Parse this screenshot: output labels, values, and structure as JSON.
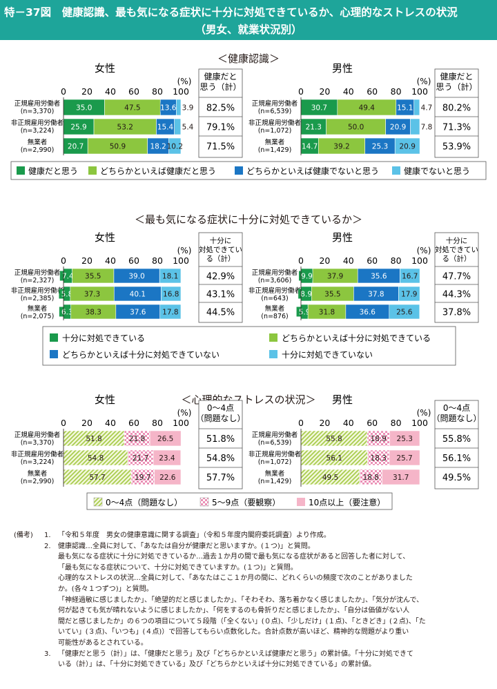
{
  "header": {
    "title": "特－37図　健康認識、最も気になる症状に十分に対処できているか、心理的なストレスの状況",
    "subtitle": "（男女、就業状況別）"
  },
  "percent_unit": "(%)",
  "chart_data": [
    {
      "type": "bar",
      "title": "＜健康認識＞",
      "orientation": "horizontal-stacked",
      "xlim": [
        0,
        100
      ],
      "xticks": [
        "0",
        "20",
        "40",
        "60",
        "80",
        "100"
      ],
      "summary_header": [
        "健康だと",
        "思う（計）"
      ],
      "legend_style": "row",
      "series": [
        {
          "name": "健康だと思う",
          "color": "#1a9a4c",
          "pattern": "solid"
        },
        {
          "name": "どちらかといえば健康だと思う",
          "color": "#8cc63f",
          "pattern": "solid"
        },
        {
          "name": "どちらかといえば健康でないと思う",
          "color": "#1b76c4",
          "pattern": "solid"
        },
        {
          "name": "健康でないと思う",
          "color": "#5bc2e7",
          "pattern": "solid"
        }
      ],
      "panels": [
        {
          "gender": "女性",
          "rows": [
            {
              "label": [
                "正規雇用労働者",
                "(n=3,370)"
              ],
              "values": [
                35.0,
                47.5,
                13.6,
                3.9
              ],
              "labels": [
                "35.0",
                "47.5",
                "13.6",
                "3.9"
              ],
              "total": "82.5%"
            },
            {
              "label": [
                "非正規雇用労働者",
                "(n=3,224)"
              ],
              "values": [
                25.9,
                53.2,
                15.4,
                5.4
              ],
              "labels": [
                "25.9",
                "53.2",
                "15.4",
                "5.4"
              ],
              "total": "79.1%"
            },
            {
              "label": [
                "無業者",
                "(n=2,990)"
              ],
              "values": [
                20.7,
                50.9,
                18.2,
                10.2
              ],
              "labels": [
                "20.7",
                "50.9",
                "18.2",
                "10.2"
              ],
              "total": "71.5%"
            }
          ]
        },
        {
          "gender": "男性",
          "rows": [
            {
              "label": [
                "正規雇用労働者",
                "(n=6,539)"
              ],
              "values": [
                30.7,
                49.4,
                15.1,
                4.7
              ],
              "labels": [
                "30.7",
                "49.4",
                "15.1",
                "4.7"
              ],
              "total": "80.2%"
            },
            {
              "label": [
                "非正規雇用労働者",
                "(n=1,072)"
              ],
              "values": [
                21.3,
                50.0,
                20.9,
                7.8
              ],
              "labels": [
                "21.3",
                "50.0",
                "20.9",
                "7.8"
              ],
              "total": "71.3%"
            },
            {
              "label": [
                "無業者",
                "(n=1,429)"
              ],
              "values": [
                14.7,
                39.2,
                25.3,
                20.9
              ],
              "labels": [
                "14.7",
                "39.2",
                "25.3",
                "20.9"
              ],
              "total": "53.9%"
            }
          ]
        }
      ]
    },
    {
      "type": "bar",
      "title": "＜最も気になる症状に十分に対処できているか＞",
      "orientation": "horizontal-stacked",
      "xlim": [
        0,
        100
      ],
      "xticks": [
        "0",
        "20",
        "40",
        "60",
        "80",
        "100"
      ],
      "summary_header": [
        "十分に",
        "対処できてい",
        "る（計）"
      ],
      "legend_style": "grid",
      "series": [
        {
          "name": "十分に対処できている",
          "color": "#1a9a4c",
          "pattern": "solid"
        },
        {
          "name": "どちらかといえば十分に対処できている",
          "color": "#8cc63f",
          "pattern": "solid"
        },
        {
          "name": "どちらかといえば十分に対処できていない",
          "color": "#1b76c4",
          "pattern": "solid"
        },
        {
          "name": "十分に対処できていない",
          "color": "#5bc2e7",
          "pattern": "solid"
        }
      ],
      "panels": [
        {
          "gender": "女性",
          "rows": [
            {
              "label": [
                "正規雇用労働者",
                "(n=2,327)"
              ],
              "values": [
                7.4,
                35.5,
                39.0,
                18.1
              ],
              "labels": [
                "7.4",
                "35.5",
                "39.0",
                "18.1"
              ],
              "total": "42.9%"
            },
            {
              "label": [
                "非正規雇用労働者",
                "(n=2,385)"
              ],
              "values": [
                5.8,
                37.3,
                40.1,
                16.8
              ],
              "labels": [
                "5.8",
                "37.3",
                "40.1",
                "16.8"
              ],
              "total": "43.1%"
            },
            {
              "label": [
                "無業者",
                "(n=2,075)"
              ],
              "values": [
                6.3,
                38.3,
                37.6,
                17.8
              ],
              "labels": [
                "6.3",
                "38.3",
                "37.6",
                "17.8"
              ],
              "total": "44.5%"
            }
          ]
        },
        {
          "gender": "男性",
          "rows": [
            {
              "label": [
                "正規雇用労働者",
                "(n=3,606)"
              ],
              "values": [
                9.9,
                37.9,
                35.6,
                16.7
              ],
              "labels": [
                "9.9",
                "37.9",
                "35.6",
                "16.7"
              ],
              "total": "47.7%"
            },
            {
              "label": [
                "非正規雇用労働者",
                "(n=643)"
              ],
              "values": [
                8.9,
                35.5,
                37.8,
                17.9
              ],
              "labels": [
                "8.9",
                "35.5",
                "37.8",
                "17.9"
              ],
              "total": "44.3%"
            },
            {
              "label": [
                "無業者",
                "(n=876)"
              ],
              "values": [
                5.9,
                31.8,
                36.6,
                25.6
              ],
              "labels": [
                "5.9",
                "31.8",
                "36.6",
                "25.6"
              ],
              "total": "37.8%"
            }
          ]
        }
      ]
    },
    {
      "type": "bar",
      "title": "＜心理的なストレスの状況＞",
      "orientation": "horizontal-stacked",
      "xlim": [
        0,
        100
      ],
      "xticks": [
        "0",
        "20",
        "40",
        "60",
        "80",
        "100"
      ],
      "summary_header": [
        "0～4点",
        "（問題なし）"
      ],
      "legend_style": "row",
      "series": [
        {
          "name": "0～4点（問題なし）",
          "color": "#c9e07a",
          "pattern": "diag"
        },
        {
          "name": "5～9点（要観察）",
          "color": "#f2a2c0",
          "pattern": "check"
        },
        {
          "name": "10点以上（要注意）",
          "color": "#f5b5c8",
          "pattern": "solid"
        }
      ],
      "panels": [
        {
          "gender": "女性",
          "rows": [
            {
              "label": [
                "正規雇用労働者",
                "(n=3,370)"
              ],
              "values": [
                51.8,
                21.8,
                26.5
              ],
              "labels": [
                "51.8",
                "21.8",
                "26.5"
              ],
              "total": "51.8%"
            },
            {
              "label": [
                "非正規雇用労働者",
                "(n=3,224)"
              ],
              "values": [
                54.8,
                21.7,
                23.4
              ],
              "labels": [
                "54.8",
                "21.7",
                "23.4"
              ],
              "total": "54.8%"
            },
            {
              "label": [
                "無業者",
                "(n=2,990)"
              ],
              "values": [
                57.7,
                19.7,
                22.6
              ],
              "labels": [
                "57.7",
                "19.7",
                "22.6"
              ],
              "total": "57.7%"
            }
          ]
        },
        {
          "gender": "男性",
          "rows": [
            {
              "label": [
                "正規雇用労働者",
                "(n=6,539)"
              ],
              "values": [
                55.8,
                18.9,
                25.3
              ],
              "labels": [
                "55.8",
                "18.9",
                "25.3"
              ],
              "total": "55.8%"
            },
            {
              "label": [
                "非正規雇用労働者",
                "(n=1,072)"
              ],
              "values": [
                56.1,
                18.3,
                25.7
              ],
              "labels": [
                "56.1",
                "18.3",
                "25.7"
              ],
              "total": "56.1%"
            },
            {
              "label": [
                "無業者",
                "(n=1,429)"
              ],
              "values": [
                49.5,
                18.8,
                31.7
              ],
              "labels": [
                "49.5",
                "18.8",
                "31.7"
              ],
              "total": "49.5%"
            }
          ]
        }
      ]
    }
  ],
  "notes": {
    "label": "(備考)",
    "items": [
      {
        "num": "1.",
        "lines": [
          "「令和５年度　男女の健康意識に関する調査」（令和５年度内閣府委託調査）より作成。"
        ]
      },
      {
        "num": "2.",
        "lines": [
          "健康認識…全員に対して、「あなたは自分が健康だと思いますか。(１つ)」と質問。",
          "最も気になる症状に十分に対処できているか…過去１か月の間で最も気になる症状があると回答した者に対して、",
          "「最も気になる症状について、十分に対処できていますか。(１つ)」と質問。",
          "心理的なストレスの状況…全員に対して、「あなたはここ１か月の間に、どれくらいの頻度で次のことがありました",
          "か。(各々１つずつ)」と質問。",
          "「神経過敏に感じましたか」、「絶望的だと感じましたか」、「そわそわ、落ち着かなく感じましたか」、「気分が沈んで、",
          "何が起きても気が晴れないように感じましたか」、「何をするのも骨折りだと感じましたか」、「自分は価値がない人",
          "間だと感じましたか」の６つの項目について５段階（「全くない」(０点)、「少しだけ」(１点)、「ときどき」(２点)、「た",
          "いてい」(３点)、「いつも」(４点)）で回答してもらい点数化した。合計点数が高いほど、精神的な問題がより重い",
          "可能性があるとされている。"
        ]
      },
      {
        "num": "3.",
        "lines": [
          "「健康だと思う（計）」は、「健康だと思う」及び「どちらかといえば健康だと思う」の累計値。「十分に対処できて",
          "いる（計）」は、「十分に対処できている」及び「どちらかといえば十分に対処できている」の累計値。"
        ]
      }
    ]
  }
}
